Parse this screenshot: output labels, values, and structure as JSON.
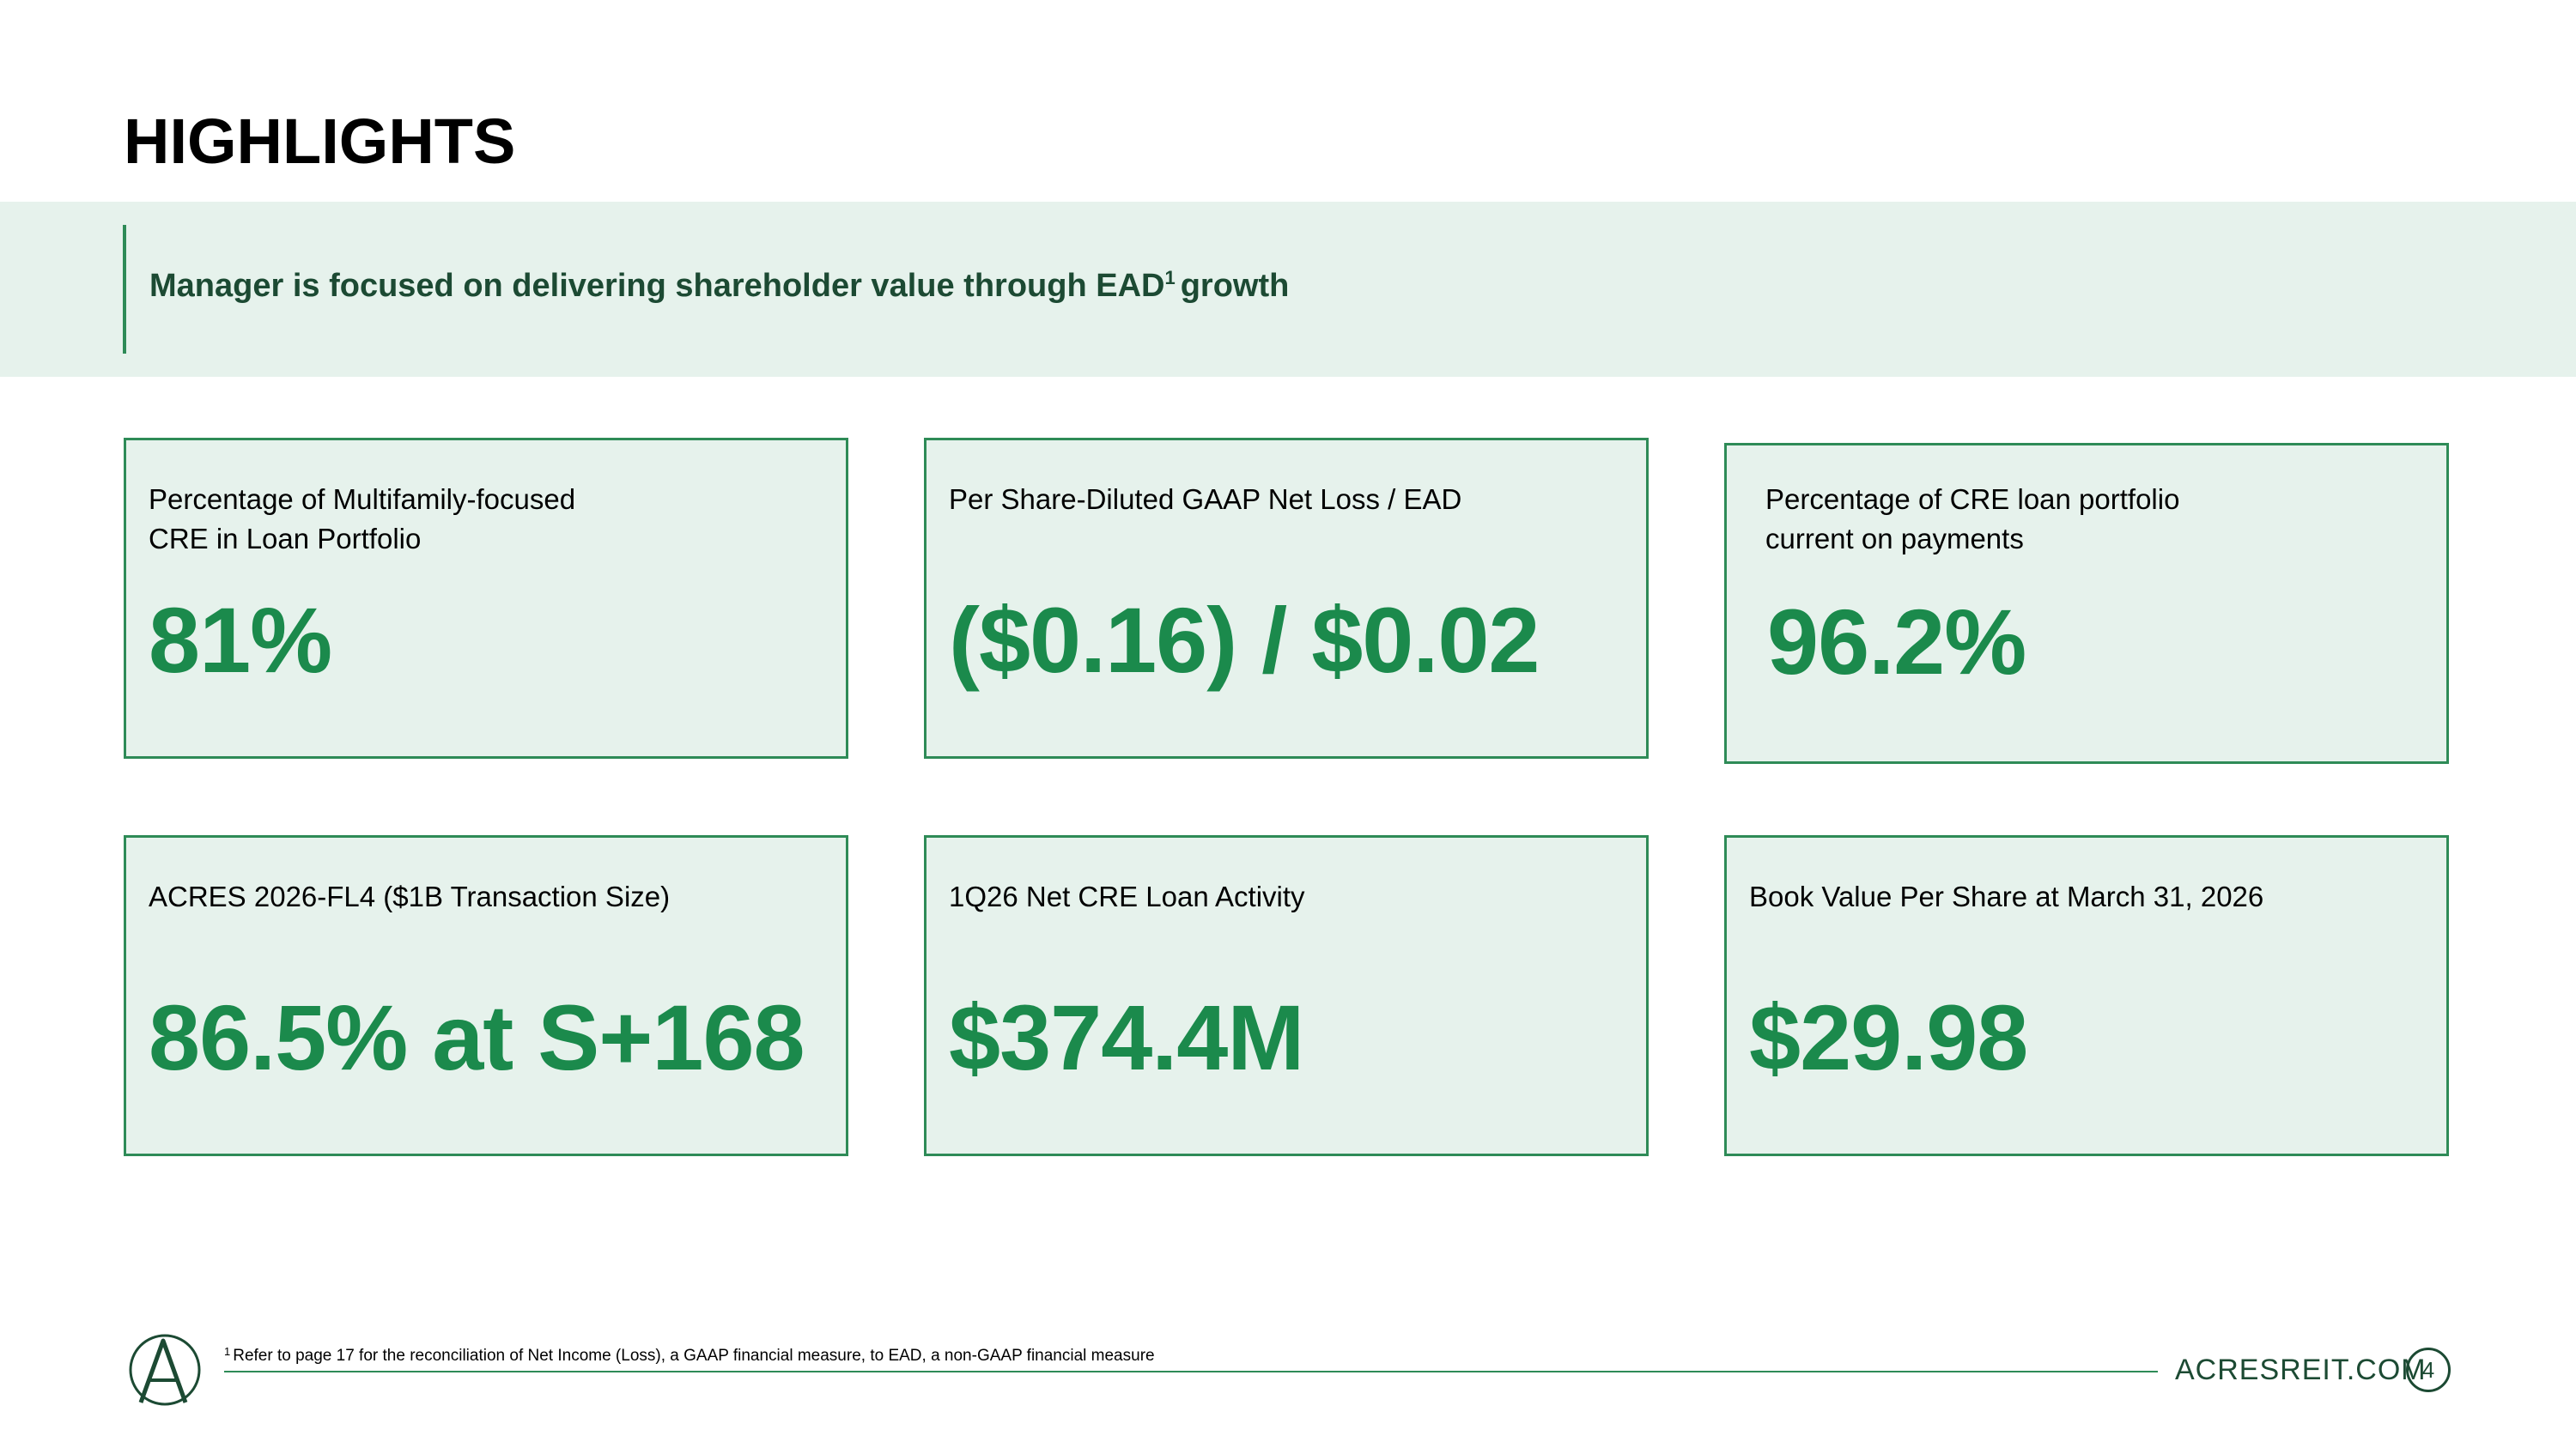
{
  "header": {
    "title": "HIGHLIGHTS"
  },
  "banner": {
    "text": "Manager is focused on delivering shareholder value through EAD",
    "sup": "1",
    "text_after": "growth"
  },
  "cards": [
    {
      "label": "Percentage of Multifamily-focused CRE in Loan Portfolio",
      "value": "81%"
    },
    {
      "label": "Per Share-Diluted GAAP Net Loss / EAD",
      "value": "($0.16) / $0.02"
    },
    {
      "label": "Percentage of CRE loan portfolio current on payments",
      "value": "96.2%"
    },
    {
      "label": "ACRES 2026-FL4 ($1B Transaction Size)",
      "value": "86.5% at S+168"
    },
    {
      "label": "1Q26 Net CRE Loan Activity",
      "value": "$374.4M"
    },
    {
      "label": "Book Value Per Share at March 31, 2026",
      "value": "$29.98"
    }
  ],
  "footer": {
    "footnote_sup": "1",
    "footnote": "Refer to page 17 for the reconciliation of Net Income (Loss), a GAAP financial measure, to EAD, a non-GAAP financial measure",
    "site": "ACRESREIT.COM",
    "page_number": "4"
  },
  "colors": {
    "accent": "#1b8a4c",
    "card_bg": "#e6f2ec",
    "border": "#2e8b57",
    "dark_green": "#1c4a33"
  },
  "icons": {
    "logo": "acres-logo-icon"
  }
}
